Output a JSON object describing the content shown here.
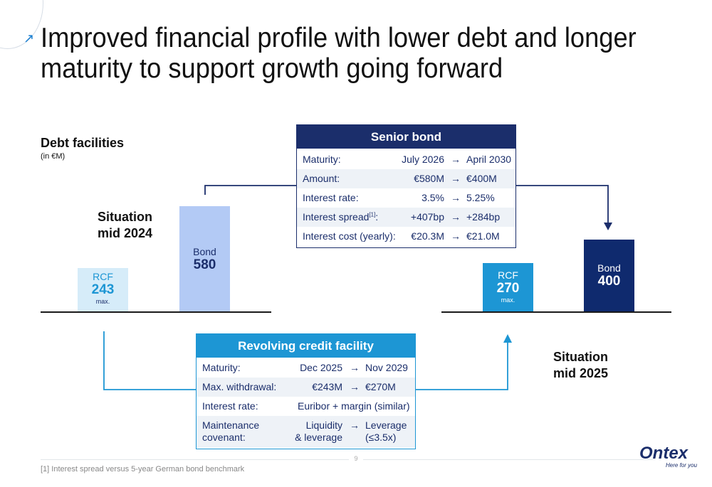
{
  "title": "Improved financial profile with lower debt and longer maturity to support growth going forward",
  "debt": {
    "heading": "Debt facilities",
    "unit": "(in €M)"
  },
  "situation_2024": [
    "Situation",
    "mid 2024"
  ],
  "situation_2025": [
    "Situation",
    "mid 2025"
  ],
  "bars_2024": {
    "rcf": {
      "label": "RCF",
      "value": "243",
      "note": "max."
    },
    "bond": {
      "label": "Bond",
      "value": "580"
    }
  },
  "bars_2025": {
    "rcf": {
      "label": "RCF",
      "value": "270",
      "note": "max."
    },
    "bond": {
      "label": "Bond",
      "value": "400"
    }
  },
  "senior_bond": {
    "header": "Senior bond",
    "rows": [
      {
        "label": "Maturity:",
        "from": "July 2026",
        "to": "April 2030"
      },
      {
        "label": "Amount:",
        "from": "€580M",
        "to": "€400M"
      },
      {
        "label": "Interest rate:",
        "from": "3.5%",
        "to": "5.25%"
      },
      {
        "label": "Interest spread",
        "sup": "[1]",
        "label_end": ":",
        "from": "+407bp",
        "to": "+284bp"
      },
      {
        "label": "Interest cost (yearly):",
        "from": "€20.3M",
        "to": "€21.0M"
      }
    ]
  },
  "rcf_table": {
    "header": "Revolving credit facility",
    "rows": [
      {
        "label": "Maturity:",
        "from": "Dec 2025",
        "to": "Nov 2029"
      },
      {
        "label": "Max. withdrawal:",
        "from": "€243M",
        "to": "€270M"
      },
      {
        "label": "Interest rate:",
        "value": "Euribor + margin (similar)"
      },
      {
        "label_lines": [
          "Maintenance",
          "covenant:"
        ],
        "from_lines": [
          "Liquidity",
          "& leverage"
        ],
        "to_lines": [
          "Leverage",
          "(≤3.5x)"
        ]
      }
    ]
  },
  "arrow_glyph": "→",
  "footnote": "[1] Interest spread versus 5-year German bond benchmark",
  "page_number": "9",
  "logo": {
    "name": "Ontex",
    "tagline": "Here for you"
  },
  "colors": {
    "navy": "#1b2e6b",
    "senior_header": "#1b2e6b",
    "rcf_header": "#1d96d4",
    "bar_rcf": "#d6ecf9",
    "bar_bond_2024": "#b3caf5",
    "bar_bond_2025": "#0f2a6e",
    "bar_rcf_2025": "#1d96d4"
  }
}
